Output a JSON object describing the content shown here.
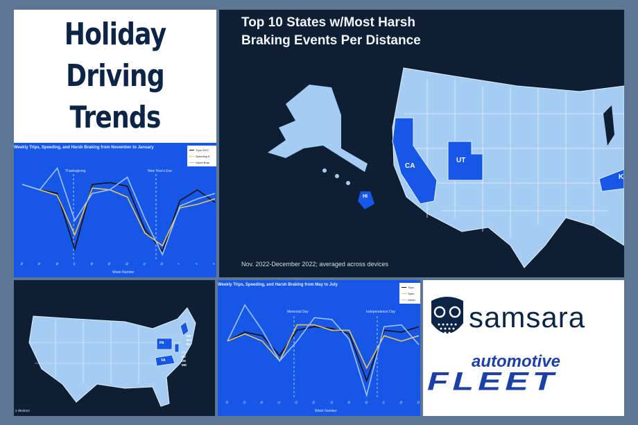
{
  "title_panel": {
    "lines": [
      "Holiday",
      "Driving",
      "Trends"
    ]
  },
  "chart_winter": {
    "title": "Weekly Trips, Speeding, and Harsh Braking from November to January",
    "annotations": [
      "Thanksgiving",
      "New Year's Eve"
    ],
    "legend": [
      "Trips 2022",
      "Speeding E",
      "Harsh Brak"
    ],
    "xlabel": "Week Number"
  },
  "map_panel": {
    "title_line1": "Top 10 States w/Most Harsh",
    "title_line2": "Braking Events Per Distance",
    "labels": [
      "CA",
      "UT",
      "HI",
      "K"
    ],
    "footnote": "Nov. 2022-December 2022; averaged across devices"
  },
  "map_east": {
    "labels": [
      "NH",
      "MA",
      "RI",
      "CT",
      "NJ",
      "DE",
      "MD",
      "PA",
      "VA"
    ],
    "footnote": "s devices"
  },
  "chart_summer": {
    "title": "Weekly Trips, Speeding, and Harsh Braking from May to July",
    "annotations": [
      "Memorial Day",
      "Independence Day"
    ],
    "legend": [
      "Trips",
      "Spee",
      "Harsh"
    ],
    "xlabel": "Week Number"
  },
  "logos": {
    "samsara": "samsara",
    "automotive": "automotive",
    "fleet": "FLEET"
  },
  "chart_data": [
    {
      "type": "line",
      "title": "Weekly Trips, Speeding, and Harsh Braking from November to January",
      "xlabel": "Week Number",
      "x": [
        44,
        45,
        46,
        47,
        48,
        49,
        50,
        51,
        52,
        1,
        2,
        3
      ],
      "series": [
        {
          "name": "Trips 2022",
          "values": [
            0.8,
            0.74,
            0.7,
            0.08,
            0.8,
            0.82,
            0.78,
            0.3,
            0.06,
            0.62,
            0.74,
            0.6
          ]
        },
        {
          "name": "Speeding E",
          "values": [
            0.8,
            0.74,
            0.68,
            0.24,
            0.76,
            0.74,
            0.66,
            0.26,
            0.12,
            0.54,
            0.58,
            0.64
          ]
        },
        {
          "name": "Harsh Brak",
          "values": [
            0.8,
            0.74,
            0.98,
            0.4,
            0.7,
            0.74,
            0.88,
            0.42,
            0.02,
            0.56,
            0.64,
            0.7
          ]
        }
      ]
    },
    {
      "type": "line",
      "title": "Weekly Trips, Speeding, and Harsh Braking from May to July",
      "xlabel": "Week Number",
      "x": [
        18,
        19,
        20,
        21,
        22,
        23,
        24,
        25,
        26,
        27,
        28,
        29
      ],
      "series": [
        {
          "name": "Trips",
          "values": [
            0.6,
            0.7,
            0.66,
            0.44,
            0.72,
            0.76,
            0.74,
            0.68,
            0.16,
            0.72,
            0.7,
            0.76
          ]
        },
        {
          "name": "Spee",
          "values": [
            0.6,
            0.68,
            0.6,
            0.38,
            0.78,
            0.78,
            0.72,
            0.72,
            0.3,
            0.66,
            0.6,
            0.66
          ]
        },
        {
          "name": "Harsh",
          "values": [
            0.6,
            1.0,
            0.72,
            0.38,
            0.6,
            0.86,
            0.84,
            0.62,
            0.0,
            0.76,
            0.78,
            0.56
          ]
        }
      ]
    }
  ]
}
